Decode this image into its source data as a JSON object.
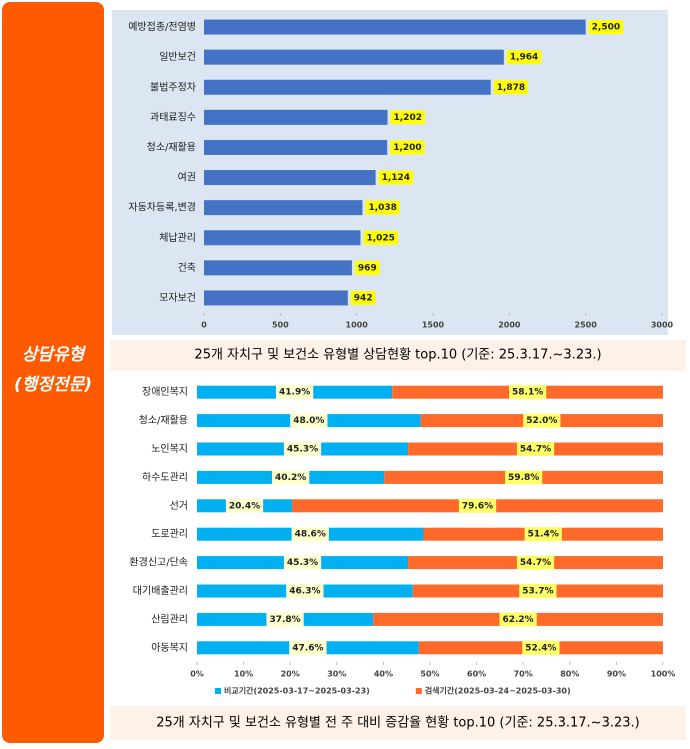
{
  "sidebar": {
    "lines": [
      "상담유형",
      "(행정전문)"
    ]
  },
  "chart_data": [
    {
      "type": "bar",
      "horizontal": true,
      "stacked": false,
      "caption": "25개 자치구 및 보건소 유형별 상담현황  top.10 (기준: 25.3.17.~3.23.)",
      "categories": [
        "예방접종/전염병",
        "일반보건",
        "불법주정차",
        "과태료징수",
        "청소/재활용",
        "여권",
        "자동차등록,변경",
        "체납관리",
        "건축",
        "모자보건"
      ],
      "values": [
        2500,
        1964,
        1878,
        1202,
        1200,
        1124,
        1038,
        1025,
        969,
        942
      ],
      "value_labels": [
        "2,500",
        "1,964",
        "1,878",
        "1,202",
        "1,200",
        "1,124",
        "1,038",
        "1,025",
        "969",
        "942"
      ],
      "color": "#4472c4",
      "xlim": [
        0,
        3000
      ],
      "xticks": [
        0,
        500,
        1000,
        1500,
        2000,
        2500,
        3000
      ],
      "grid": false
    },
    {
      "type": "bar",
      "horizontal": true,
      "stacked": true,
      "caption": "25개 자치구 및 보건소 유형별 전 주 대비 증감율 현황  top.10 (기준: 25.3.17.~3.23.)",
      "categories": [
        "장애인복지",
        "청소/재활용",
        "노인복지",
        "하수도관리",
        "선거",
        "도로관리",
        "환경신고/단속",
        "대기배출관리",
        "산림관리",
        "아동복지"
      ],
      "series": [
        {
          "name": "비교기간(2025-03-17~2025-03-23)",
          "color": "#00b0f0",
          "values": [
            41.9,
            48.0,
            45.3,
            40.2,
            20.4,
            48.6,
            45.3,
            46.3,
            37.8,
            47.6
          ],
          "value_labels": [
            "41.9%",
            "48.0%",
            "45.3%",
            "40.2%",
            "20.4%",
            "48.6%",
            "45.3%",
            "46.3%",
            "37.8%",
            "47.6%"
          ]
        },
        {
          "name": "검색기간(2025-03-24~2025-03-30)",
          "color": "#ff6a2b",
          "values": [
            58.1,
            52.0,
            54.7,
            59.8,
            79.6,
            51.4,
            54.7,
            53.7,
            62.2,
            52.4
          ],
          "value_labels": [
            "58.1%",
            "52.0%",
            "54.7%",
            "59.8%",
            "79.6%",
            "51.4%",
            "54.7%",
            "53.7%",
            "62.2%",
            "52.4%"
          ]
        }
      ],
      "xlim": [
        0,
        100
      ],
      "xticks": [
        {
          "value": 0,
          "label": "0%"
        },
        {
          "value": 10,
          "label": "10%"
        },
        {
          "value": 20,
          "label": "20%"
        },
        {
          "value": 30,
          "label": "30%"
        },
        {
          "value": 40,
          "label": "40%"
        },
        {
          "value": 50,
          "label": "50%"
        },
        {
          "value": 60,
          "label": "60%"
        },
        {
          "value": 70,
          "label": "70%"
        },
        {
          "value": 80,
          "label": "80%"
        },
        {
          "value": 90,
          "label": "90%"
        },
        {
          "value": 100,
          "label": "100%"
        }
      ],
      "legend": "bottom",
      "grid": false
    }
  ]
}
